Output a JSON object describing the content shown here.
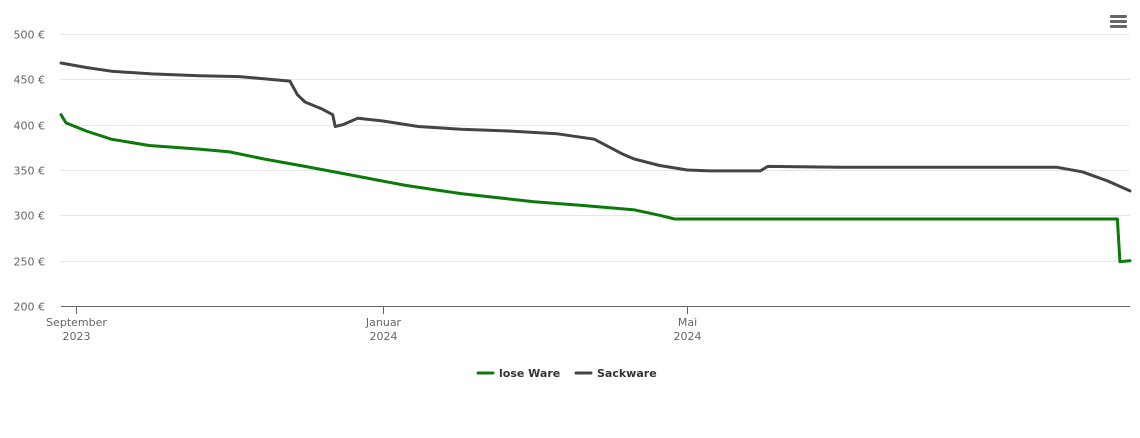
{
  "chart_data": {
    "type": "line",
    "title": "",
    "xlabel": "",
    "ylabel": "",
    "ylim": [
      200,
      500
    ],
    "yticks": [
      200,
      250,
      300,
      350,
      400,
      450,
      500
    ],
    "ytick_labels": [
      "200 €",
      "250 €",
      "300 €",
      "350 €",
      "400 €",
      "450 €",
      "500 €"
    ],
    "xlim": [
      "2023-08-26",
      "2024-10-24"
    ],
    "xticks": [
      {
        "date": "2023-09-01",
        "line1": "September",
        "line2": "2023"
      },
      {
        "date": "2024-01-01",
        "line1": "Januar",
        "line2": "2024"
      },
      {
        "date": "2024-05-01",
        "line1": "Mai",
        "line2": "2024"
      }
    ],
    "grid": true,
    "legend_position": "bottom-center",
    "series": [
      {
        "name": "lose Ware",
        "color": "#0b7a0b",
        "points": [
          [
            "2023-08-26",
            411
          ],
          [
            "2023-08-28",
            402
          ],
          [
            "2023-09-05",
            393
          ],
          [
            "2023-09-15",
            384
          ],
          [
            "2023-09-30",
            377
          ],
          [
            "2023-10-20",
            373
          ],
          [
            "2023-11-01",
            370
          ],
          [
            "2023-11-15",
            362
          ],
          [
            "2023-12-01",
            354
          ],
          [
            "2023-12-20",
            344
          ],
          [
            "2024-01-10",
            333
          ],
          [
            "2024-02-01",
            324
          ],
          [
            "2024-03-01",
            315
          ],
          [
            "2024-03-20",
            311
          ],
          [
            "2024-04-10",
            306
          ],
          [
            "2024-04-20",
            300
          ],
          [
            "2024-04-26",
            296
          ],
          [
            "2024-05-15",
            296
          ],
          [
            "2024-07-01",
            296
          ],
          [
            "2024-09-01",
            296
          ],
          [
            "2024-10-19",
            296
          ],
          [
            "2024-10-20",
            249
          ],
          [
            "2024-10-24",
            250
          ]
        ]
      },
      {
        "name": "Sackware",
        "color": "#444444",
        "points": [
          [
            "2023-08-26",
            468
          ],
          [
            "2023-09-05",
            463
          ],
          [
            "2023-09-15",
            459
          ],
          [
            "2023-10-01",
            456
          ],
          [
            "2023-10-20",
            454
          ],
          [
            "2023-11-05",
            453
          ],
          [
            "2023-11-25",
            448
          ],
          [
            "2023-11-28",
            433
          ],
          [
            "2023-12-01",
            425
          ],
          [
            "2023-12-08",
            417
          ],
          [
            "2023-12-12",
            411
          ],
          [
            "2023-12-13",
            398
          ],
          [
            "2023-12-16",
            400
          ],
          [
            "2023-12-22",
            407
          ],
          [
            "2024-01-01",
            404
          ],
          [
            "2024-01-15",
            398
          ],
          [
            "2024-02-01",
            395
          ],
          [
            "2024-02-20",
            393
          ],
          [
            "2024-03-10",
            390
          ],
          [
            "2024-03-25",
            384
          ],
          [
            "2024-04-05",
            368
          ],
          [
            "2024-04-10",
            362
          ],
          [
            "2024-04-20",
            355
          ],
          [
            "2024-05-01",
            350
          ],
          [
            "2024-05-10",
            349
          ],
          [
            "2024-05-25",
            349
          ],
          [
            "2024-05-30",
            349
          ],
          [
            "2024-06-02",
            354
          ],
          [
            "2024-07-01",
            353
          ],
          [
            "2024-09-01",
            353
          ],
          [
            "2024-09-25",
            353
          ],
          [
            "2024-10-05",
            348
          ],
          [
            "2024-10-15",
            338
          ],
          [
            "2024-10-24",
            327
          ]
        ]
      }
    ]
  },
  "toolbar": {
    "menu_icon": "hamburger-menu-icon"
  }
}
